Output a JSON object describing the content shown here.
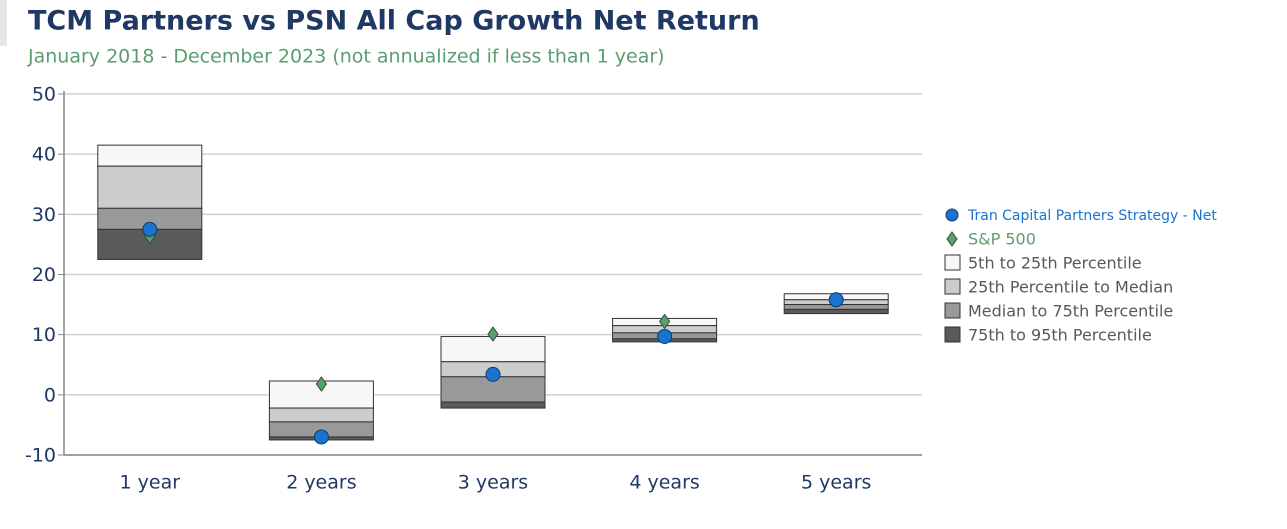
{
  "chart_data": {
    "type": "percentile-box",
    "title": "TCM Partners vs PSN All Cap Growth Net Return",
    "subtitle": "January 2018 - December 2023 (not annualized if less than 1 year)",
    "categories": [
      "1 year",
      "2 years",
      "3 years",
      "4 years",
      "5 years"
    ],
    "ylim": [
      -10,
      50
    ],
    "yticks": [
      -10,
      0,
      10,
      20,
      30,
      40,
      50
    ],
    "grid": true,
    "levels": [
      [
        41.5,
        2.3,
        9.7,
        12.7,
        16.8
      ],
      [
        38,
        -2.2,
        5.5,
        11.5,
        15.8
      ],
      [
        31,
        -4.5,
        3,
        10.3,
        15
      ],
      [
        27.5,
        -7,
        -1.2,
        9.3,
        14.2
      ],
      [
        22.5,
        -7.5,
        -2.2,
        8.8,
        13.5
      ]
    ],
    "bands": [
      {
        "name": "5th to 25th Percentile",
        "color": "#f7f7f7"
      },
      {
        "name": "25th Percentile to Median",
        "color": "#cccccc"
      },
      {
        "name": "Median to 75th Percentile",
        "color": "#999999"
      },
      {
        "name": "75th to 95th Percentile",
        "color": "#5a5a5a"
      }
    ],
    "series": [
      {
        "name": "Tran Capital Partners Strategy - Net",
        "color": "#1874cd",
        "marker": "circle",
        "values": [
          27.5,
          -7,
          3.4,
          9.7,
          15.8
        ]
      },
      {
        "name": "S&P 500",
        "color": "#5a9e6f",
        "marker": "diamond",
        "values": [
          26.3,
          1.8,
          10.1,
          12.2,
          15.8
        ]
      }
    ]
  }
}
